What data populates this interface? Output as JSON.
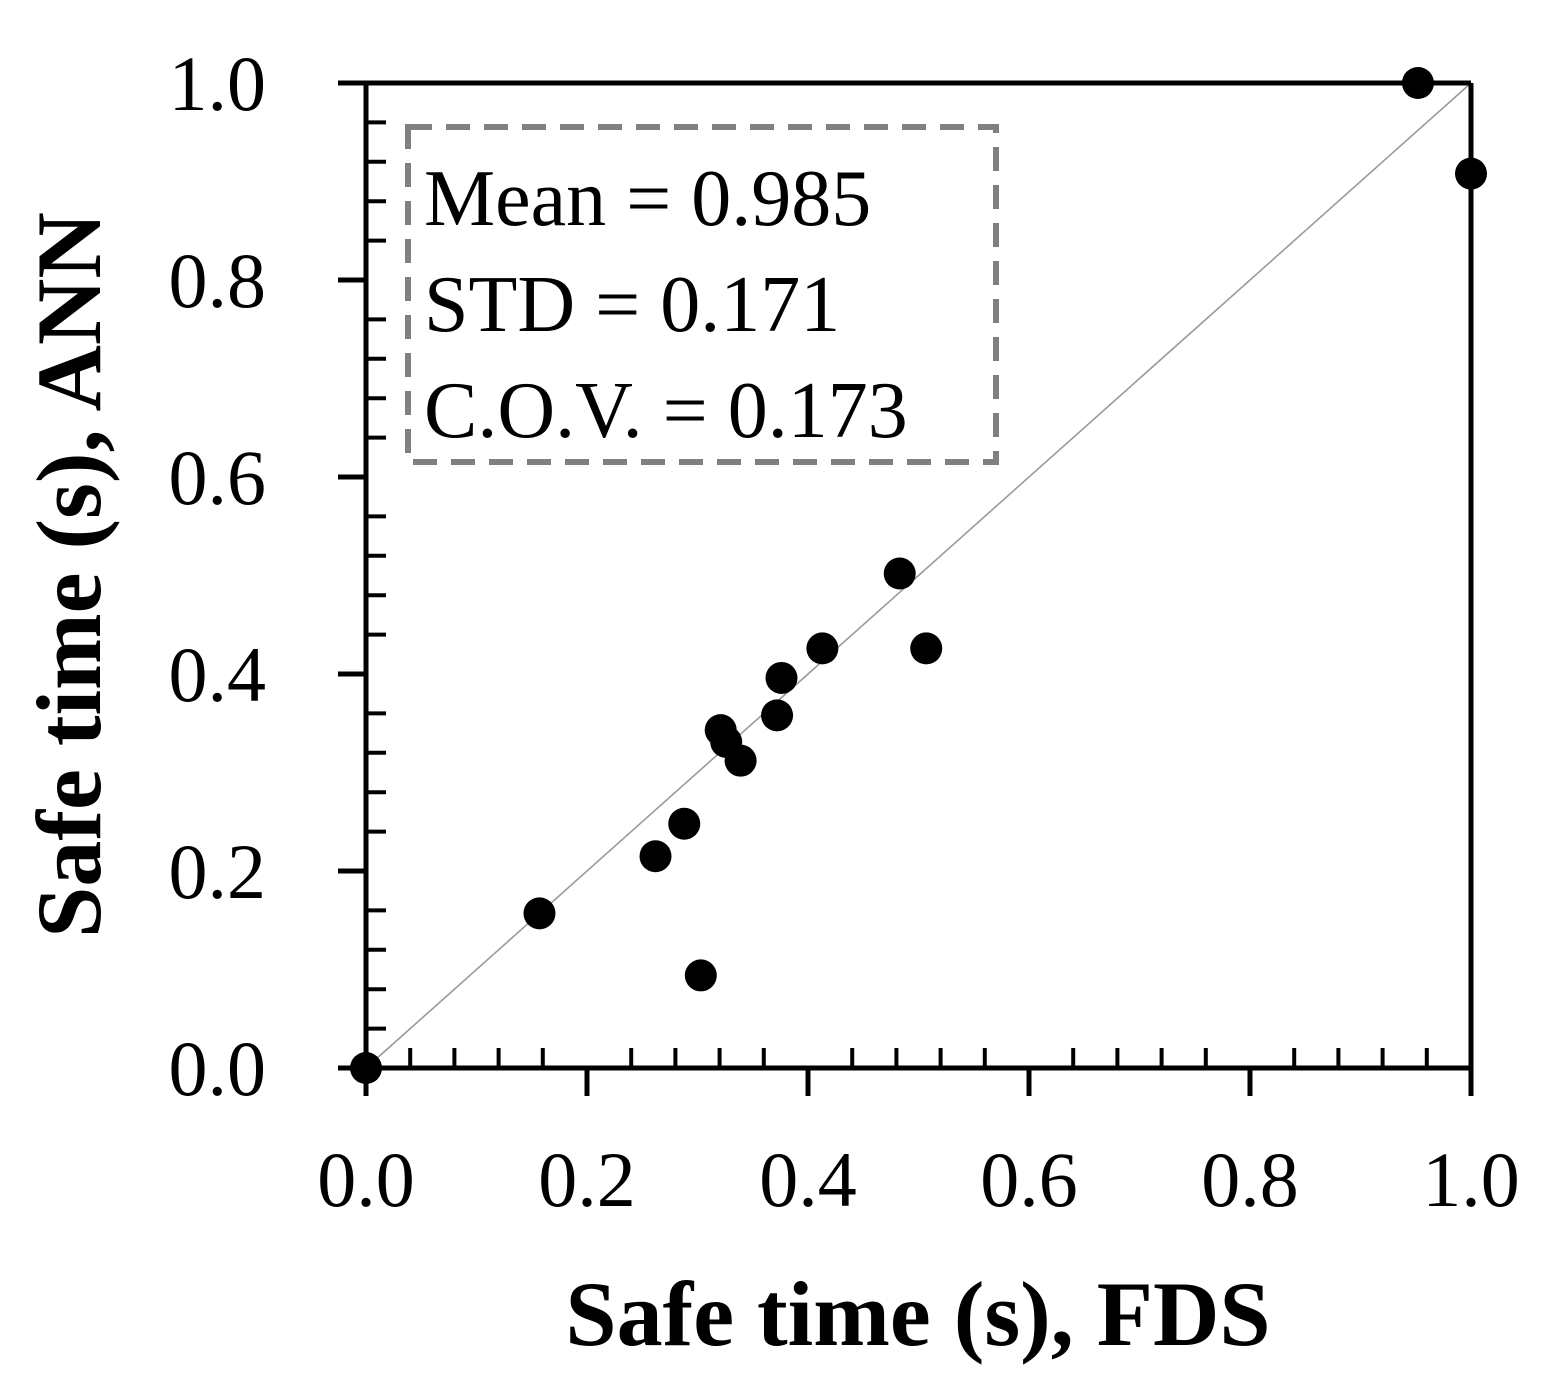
{
  "chart_data": {
    "type": "scatter",
    "title": "",
    "xlabel": "Safe time (s), FDS",
    "ylabel": "Safe time (s), ANN",
    "xlim": [
      0.0,
      1.0
    ],
    "ylim": [
      0.0,
      1.0
    ],
    "xticks": [
      "0.0",
      "0.2",
      "0.4",
      "0.6",
      "0.8",
      "1.0"
    ],
    "yticks": [
      "0.0",
      "0.2",
      "0.4",
      "0.6",
      "0.8",
      "1.0"
    ],
    "grid": false,
    "reference_line": "y = x",
    "points": [
      {
        "x": 0.0,
        "y": 0.0
      },
      {
        "x": 0.157,
        "y": 0.157
      },
      {
        "x": 0.262,
        "y": 0.215
      },
      {
        "x": 0.288,
        "y": 0.248
      },
      {
        "x": 0.303,
        "y": 0.094
      },
      {
        "x": 0.321,
        "y": 0.343
      },
      {
        "x": 0.326,
        "y": 0.331
      },
      {
        "x": 0.339,
        "y": 0.312
      },
      {
        "x": 0.372,
        "y": 0.358
      },
      {
        "x": 0.376,
        "y": 0.396
      },
      {
        "x": 0.413,
        "y": 0.426
      },
      {
        "x": 0.483,
        "y": 0.502
      },
      {
        "x": 0.507,
        "y": 0.426
      },
      {
        "x": 0.952,
        "y": 1.0
      },
      {
        "x": 1.0,
        "y": 0.908
      }
    ],
    "annotation": {
      "lines": [
        "Mean = 0.985",
        "STD = 0.171",
        "C.O.V. = 0.173"
      ],
      "placement": "top-left",
      "border": "dashed",
      "border_color": "#808080"
    },
    "colors": {
      "marker": "#000000",
      "axis": "#000000",
      "reference_line": "#9a9a9a"
    }
  }
}
